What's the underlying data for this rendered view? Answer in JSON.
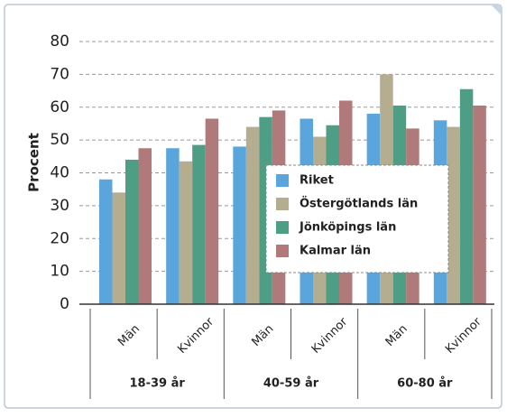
{
  "chart_data": {
    "type": "bar",
    "y_label": "Procent",
    "categories": [
      "Män",
      "Kvinnor",
      "Män",
      "Kvinnor",
      "Män",
      "Kvinnor"
    ],
    "groups": [
      "18-39 år",
      "40-59 år",
      "60-80 år"
    ],
    "series": [
      {
        "name": "Riket",
        "color": "#5aa5dc",
        "values": [
          38,
          47.5,
          48,
          56.5,
          58,
          56
        ]
      },
      {
        "name": "Östergötlands län",
        "color": "#b5ad8f",
        "values": [
          34,
          43.5,
          54,
          51,
          70,
          54
        ]
      },
      {
        "name": "Jönköpings län",
        "color": "#4e9e85",
        "values": [
          44,
          48.5,
          57,
          54.5,
          60.5,
          65.5
        ]
      },
      {
        "name": "Kalmar län",
        "color": "#b07a7a",
        "values": [
          47.5,
          56.5,
          59,
          62,
          53.5,
          60.5
        ]
      }
    ],
    "ylim": [
      0,
      80
    ],
    "yticks": [
      0,
      10,
      20,
      30,
      40,
      50,
      60,
      70,
      80
    ],
    "grid": true,
    "legend": "center"
  }
}
